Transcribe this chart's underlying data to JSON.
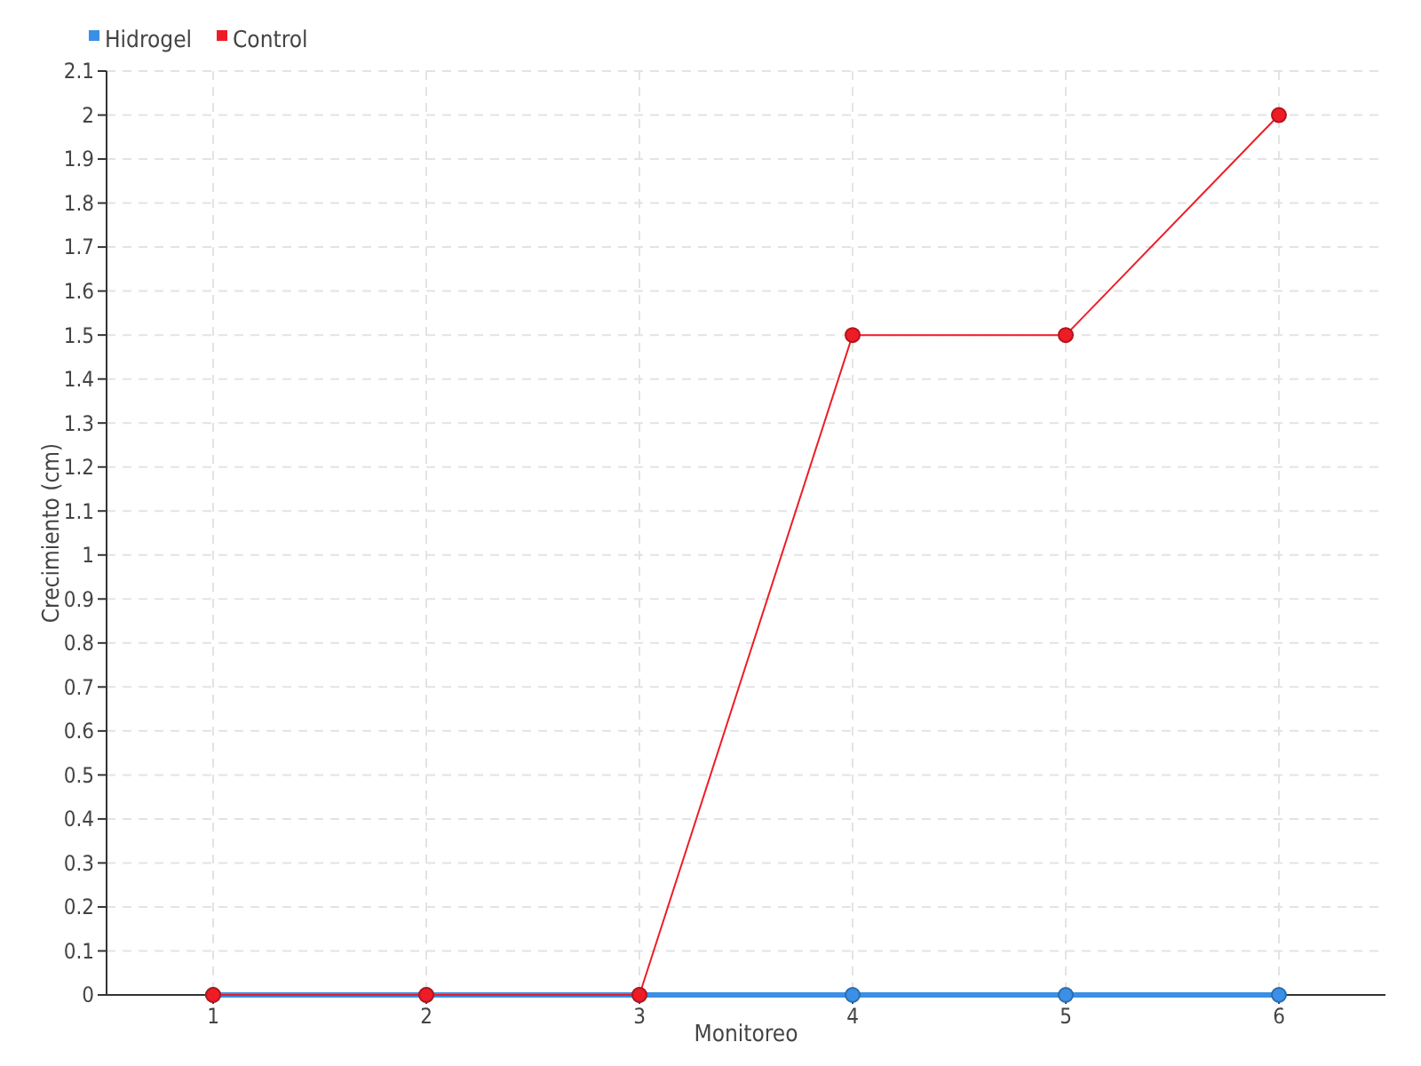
{
  "chart_data": {
    "type": "line",
    "xlabel": "Monitoreo",
    "ylabel": "Crecimiento (cm)",
    "categories": [
      "1",
      "2",
      "3",
      "4",
      "5",
      "6"
    ],
    "series": [
      {
        "name": "Hidrogel",
        "color": "#3b8fe6",
        "values": [
          0,
          0,
          0,
          0,
          0,
          0
        ]
      },
      {
        "name": "Control",
        "color": "#ee1c25",
        "values": [
          0,
          0,
          0,
          1.5,
          1.5,
          2
        ]
      }
    ],
    "ylim": [
      0,
      2.1
    ],
    "yticks": [
      0,
      0.1,
      0.2,
      0.3,
      0.4,
      0.5,
      0.6,
      0.7,
      0.8,
      0.9,
      1,
      1.1,
      1.2,
      1.3,
      1.4,
      1.5,
      1.6,
      1.7,
      1.8,
      1.9,
      2,
      2.1
    ],
    "grid": true,
    "legend": "top left",
    "marker": "circle",
    "line_style": "solid"
  }
}
